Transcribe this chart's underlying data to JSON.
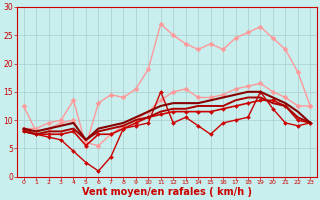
{
  "background_color": "#c8eeee",
  "grid_color": "#aacccc",
  "xlabel": "Vent moyen/en rafales ( km/h )",
  "xlabel_color": "#cc0000",
  "xlabel_fontsize": 7,
  "tick_color": "#cc0000",
  "xlim": [
    -0.5,
    23.5
  ],
  "ylim": [
    0,
    30
  ],
  "yticks": [
    0,
    5,
    10,
    15,
    20,
    25,
    30
  ],
  "xticks": [
    0,
    1,
    2,
    3,
    4,
    5,
    6,
    7,
    8,
    9,
    10,
    11,
    12,
    13,
    14,
    15,
    16,
    17,
    18,
    19,
    20,
    21,
    22,
    23
  ],
  "lines": [
    {
      "x": [
        0,
        1,
        2,
        3,
        4,
        5,
        6,
        7,
        8,
        9,
        10,
        11,
        12,
        13,
        14,
        15,
        16,
        17,
        18,
        19,
        20,
        21,
        22,
        23
      ],
      "y": [
        8.5,
        8.5,
        9.5,
        10.0,
        13.5,
        5.5,
        13.0,
        14.5,
        14.0,
        15.5,
        19.0,
        27.0,
        25.0,
        23.5,
        22.5,
        23.5,
        22.5,
        24.5,
        25.5,
        26.5,
        24.5,
        22.5,
        18.5,
        12.5
      ],
      "color": "#ff9999",
      "lw": 1.0,
      "marker": "D",
      "markersize": 2.5,
      "zorder": 2
    },
    {
      "x": [
        0,
        1,
        2,
        3,
        4,
        5,
        6,
        7,
        8,
        9,
        10,
        11,
        12,
        13,
        14,
        15,
        16,
        17,
        18,
        19,
        20,
        21,
        22,
        23
      ],
      "y": [
        12.5,
        8.0,
        8.5,
        9.5,
        10.0,
        6.0,
        5.5,
        7.5,
        9.0,
        10.0,
        11.5,
        13.5,
        15.0,
        15.5,
        14.0,
        14.0,
        14.5,
        15.5,
        16.0,
        16.5,
        15.0,
        14.0,
        12.5,
        12.5
      ],
      "color": "#ff9999",
      "lw": 1.0,
      "marker": "D",
      "markersize": 2.5,
      "zorder": 2
    },
    {
      "x": [
        0,
        1,
        2,
        3,
        4,
        5,
        6,
        7,
        8,
        9,
        10,
        11,
        12,
        13,
        14,
        15,
        16,
        17,
        18,
        19,
        20,
        21,
        22,
        23
      ],
      "y": [
        8.5,
        7.5,
        7.0,
        6.5,
        4.5,
        2.5,
        1.0,
        3.5,
        8.5,
        9.0,
        9.5,
        15.0,
        9.5,
        10.5,
        9.0,
        7.5,
        9.5,
        10.0,
        10.5,
        15.0,
        12.0,
        9.5,
        9.0,
        9.5
      ],
      "color": "#cc0000",
      "lw": 1.0,
      "marker": "D",
      "markersize": 2.0,
      "zorder": 3
    },
    {
      "x": [
        0,
        1,
        2,
        3,
        4,
        5,
        6,
        7,
        8,
        9,
        10,
        11,
        12,
        13,
        14,
        15,
        16,
        17,
        18,
        19,
        20,
        21,
        22,
        23
      ],
      "y": [
        8.0,
        7.5,
        7.5,
        7.5,
        8.0,
        5.5,
        7.5,
        7.5,
        8.5,
        9.5,
        10.5,
        11.0,
        11.5,
        11.5,
        11.5,
        11.5,
        12.0,
        12.5,
        13.0,
        13.5,
        13.5,
        12.5,
        10.0,
        9.5
      ],
      "color": "#cc0000",
      "lw": 1.2,
      "marker": "D",
      "markersize": 2.0,
      "zorder": 3
    },
    {
      "x": [
        0,
        1,
        2,
        3,
        4,
        5,
        6,
        7,
        8,
        9,
        10,
        11,
        12,
        13,
        14,
        15,
        16,
        17,
        18,
        19,
        20,
        21,
        22,
        23
      ],
      "y": [
        8.0,
        7.5,
        8.0,
        8.0,
        8.5,
        6.5,
        8.0,
        8.5,
        9.0,
        10.0,
        10.5,
        11.5,
        12.0,
        12.0,
        12.5,
        12.5,
        12.5,
        13.5,
        14.0,
        14.0,
        13.0,
        12.5,
        10.5,
        9.5
      ],
      "color": "#aa0000",
      "lw": 1.4,
      "marker": null,
      "markersize": 0,
      "zorder": 4
    },
    {
      "x": [
        0,
        1,
        2,
        3,
        4,
        5,
        6,
        7,
        8,
        9,
        10,
        11,
        12,
        13,
        14,
        15,
        16,
        17,
        18,
        19,
        20,
        21,
        22,
        23
      ],
      "y": [
        8.5,
        8.0,
        8.5,
        9.0,
        9.5,
        6.5,
        8.5,
        9.0,
        9.5,
        10.5,
        11.5,
        12.5,
        13.0,
        13.0,
        13.0,
        13.5,
        14.0,
        14.5,
        15.0,
        15.0,
        14.0,
        13.0,
        11.5,
        9.5
      ],
      "color": "#880000",
      "lw": 1.5,
      "marker": null,
      "markersize": 0,
      "zorder": 4
    }
  ]
}
